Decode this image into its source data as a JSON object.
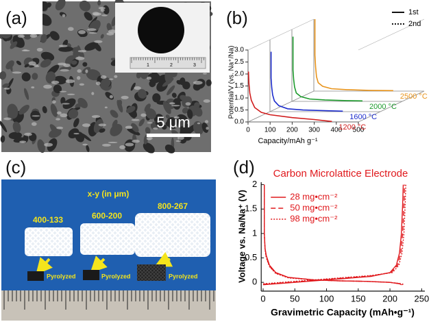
{
  "panel_labels": [
    "(a)",
    "(b)",
    "(c)",
    "(d)"
  ],
  "panel_a": {
    "scale_bar": "5 μm",
    "ruler_labels": [
      "1",
      "2",
      "3"
    ]
  },
  "panel_c": {
    "heading": "x-y (in μm)",
    "samples": [
      {
        "label": "400-133",
        "pyrolyzed": "Pyrolyzed"
      },
      {
        "label": "600-200",
        "pyrolyzed": "Pyrolyzed"
      },
      {
        "label": "800-267",
        "pyrolyzed": "Pyrolyzed"
      }
    ]
  },
  "chart_data": [
    {
      "type": "line3d",
      "xlabel": "Capacity/mAh g⁻¹",
      "ylabel": "Potential/V (vs. Na⁺/Na)",
      "xlim": [
        0,
        500
      ],
      "ylim": [
        0,
        3.0
      ],
      "xticks": [
        0,
        100,
        200,
        300,
        400,
        500
      ],
      "yticks": [
        {
          "value": 0,
          "label": "0.0"
        },
        0.5,
        {
          "value": 1,
          "label": "1.0"
        },
        1.5,
        {
          "value": 2,
          "label": "2.0"
        },
        2.5,
        {
          "value": 3,
          "label": "3.0"
        }
      ],
      "legend": [
        "1st",
        "2nd"
      ],
      "series": [
        {
          "name": "1200 °C",
          "color": "#d01c1c",
          "x": [
            2,
            4,
            8,
            15,
            30,
            60,
            100,
            200,
            300,
            350,
            380
          ],
          "values": [
            2.1,
            1.6,
            1.2,
            0.9,
            0.6,
            0.4,
            0.3,
            0.18,
            0.1,
            0.05,
            0.02
          ]
        },
        {
          "name": "1600 °C",
          "color": "#1c2ccc",
          "x": [
            5,
            5,
            8,
            12,
            20,
            40,
            80,
            150,
            250,
            330
          ],
          "values": [
            2.5,
            1.4,
            1.0,
            0.7,
            0.45,
            0.25,
            0.12,
            0.07,
            0.04,
            0.02
          ]
        },
        {
          "name": "2000 °C",
          "color": "#1c9a2c",
          "x": [
            5,
            5,
            8,
            12,
            20,
            40,
            80,
            150,
            250,
            320
          ],
          "values": [
            2.7,
            1.3,
            0.9,
            0.6,
            0.35,
            0.2,
            0.1,
            0.06,
            0.03,
            0.02
          ]
        },
        {
          "name": "2500 °C",
          "color": "#e8941c",
          "x": [
            5,
            5,
            8,
            12,
            20,
            40,
            80,
            150,
            250,
            360
          ],
          "values": [
            3.0,
            1.5,
            1.0,
            0.6,
            0.35,
            0.2,
            0.1,
            0.06,
            0.03,
            0.02
          ]
        }
      ]
    },
    {
      "type": "line",
      "title": "Carbon Microlattice Electrode",
      "xlabel": "Gravimetric Capacity (mAh•g⁻¹)",
      "ylabel": "Voltage vs. Na/Na⁺ (V)",
      "xlim": [
        -3,
        255
      ],
      "ylim": [
        -0.18,
        2.05
      ],
      "xticks": [
        0,
        50,
        100,
        150,
        200,
        250
      ],
      "yticks": [
        0,
        0.5,
        1,
        1.5,
        2
      ],
      "legend_position": "upper left",
      "series": [
        {
          "name": "28 mg•cm⁻²",
          "color": "#e0181c",
          "style": "solid",
          "x": [
            2,
            2,
            3,
            5,
            10,
            20,
            40,
            80,
            120,
            160,
            200,
            215,
            218,
            null,
            0,
            20,
            50,
            90,
            130,
            170,
            200,
            210,
            215,
            218,
            220,
            221
          ],
          "values": [
            2.0,
            1.0,
            0.7,
            0.55,
            0.35,
            0.2,
            0.1,
            0.05,
            0.03,
            0.02,
            0.0,
            -0.03,
            -0.05,
            null,
            -0.05,
            -0.03,
            0.0,
            0.04,
            0.08,
            0.12,
            0.2,
            0.35,
            0.6,
            1.0,
            1.6,
            2.0
          ]
        },
        {
          "name": "50 mg•cm⁻²",
          "color": "#e0181c",
          "style": "dashed",
          "x": [
            2,
            2,
            3,
            5,
            10,
            20,
            40,
            80,
            120,
            160,
            200,
            217,
            220,
            null,
            0,
            20,
            50,
            90,
            130,
            170,
            202,
            212,
            217,
            220,
            222,
            223
          ],
          "values": [
            2.0,
            1.0,
            0.68,
            0.52,
            0.33,
            0.19,
            0.1,
            0.05,
            0.03,
            0.02,
            0.0,
            -0.03,
            -0.05,
            null,
            -0.04,
            -0.02,
            0.01,
            0.05,
            0.09,
            0.13,
            0.2,
            0.35,
            0.6,
            1.0,
            1.6,
            2.0
          ]
        },
        {
          "name": "98 mg•cm⁻²",
          "color": "#e0181c",
          "style": "dotted",
          "x": [
            2,
            2,
            3,
            5,
            10,
            20,
            40,
            80,
            120,
            160,
            200,
            219,
            222,
            null,
            0,
            20,
            50,
            90,
            130,
            170,
            204,
            214,
            219,
            222,
            224,
            225
          ],
          "values": [
            2.0,
            1.0,
            0.66,
            0.5,
            0.32,
            0.18,
            0.09,
            0.05,
            0.03,
            0.02,
            0.0,
            -0.03,
            -0.05,
            null,
            -0.03,
            -0.01,
            0.02,
            0.06,
            0.1,
            0.14,
            0.2,
            0.35,
            0.6,
            1.0,
            1.6,
            2.0
          ]
        }
      ]
    }
  ]
}
